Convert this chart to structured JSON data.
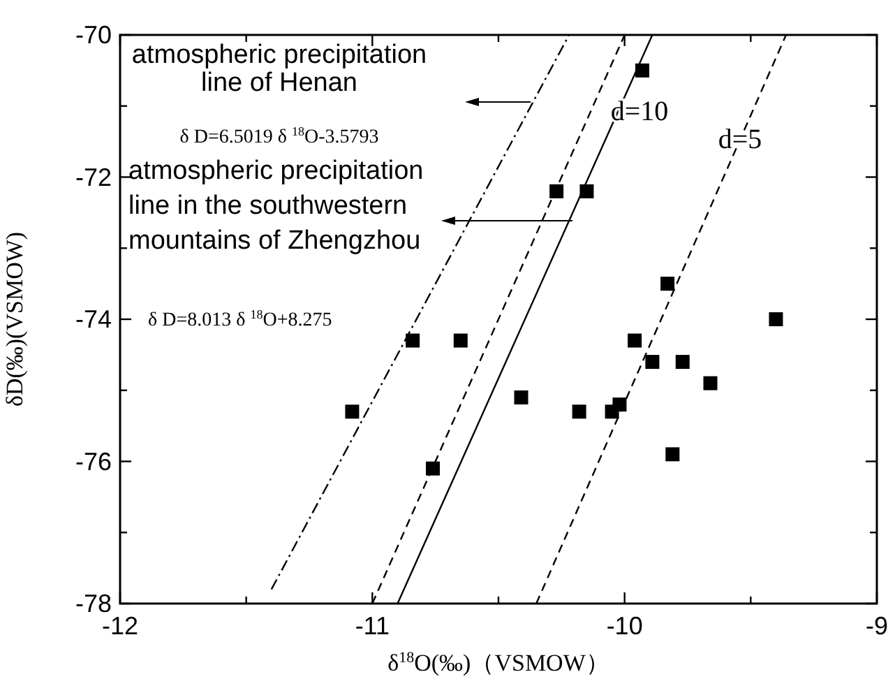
{
  "chart_data": {
    "type": "scatter",
    "xlabel": "δ$^{18}$O(‰)（VSMOW）",
    "ylabel": "δD(‰)(VSMOW)",
    "xlim": [
      -12,
      -9
    ],
    "xticks": [
      -12,
      {
        "value": -11.5,
        "label": null
      },
      -11,
      {
        "value": -10.5,
        "label": null
      },
      -10,
      {
        "value": -9.5,
        "label": null
      },
      -9
    ],
    "ylim": [
      -78,
      -70
    ],
    "yticks": [
      -78,
      {
        "value": -77,
        "label": null
      },
      -76,
      {
        "value": -75,
        "label": null
      },
      -74,
      {
        "value": -73,
        "label": null
      },
      -72,
      {
        "value": -71,
        "label": null
      },
      -70
    ],
    "marker": "square",
    "grid": false,
    "series": [
      {
        "color": "#000000",
        "x": [
          -9.93,
          -10.27,
          -10.15,
          -9.83,
          -10.84,
          -10.65,
          -11.08,
          -10.76,
          -9.4,
          -9.96,
          -9.89,
          -9.77,
          -9.66,
          -10.41,
          -10.18,
          -10.05,
          -10.02,
          -9.81
        ],
        "values": [
          -70.5,
          -72.2,
          -72.2,
          -73.5,
          -74.3,
          -74.3,
          -75.3,
          -76.1,
          -74.0,
          -74.3,
          -74.6,
          -74.6,
          -74.9,
          -75.1,
          -75.3,
          -75.3,
          -75.2,
          -75.9
        ]
      },
      {
        "type": "line",
        "color": "#000000",
        "line_style": "dashdot",
        "marker": "none",
        "x": [
          -11.4,
          -10.22
        ],
        "values": [
          -77.8,
          -70
        ]
      },
      {
        "type": "line",
        "color": "#000000",
        "line_style": "dashed",
        "marker": "none",
        "x": [
          -11.0,
          -10.0
        ],
        "values": [
          -78,
          -70
        ]
      },
      {
        "type": "line",
        "color": "#000000",
        "line_style": "solid",
        "marker": "none",
        "x": [
          -10.9,
          -9.89
        ],
        "values": [
          -78,
          -70
        ]
      },
      {
        "type": "line",
        "color": "#000000",
        "line_style": "dashed",
        "marker": "none",
        "x": [
          -10.35,
          -9.36
        ],
        "values": [
          -78,
          -70
        ]
      }
    ],
    "annotations": [
      "atmospheric precipitation line of Henan",
      "δ D=6.5019 δ $^{18}$O-3.5793",
      "atmospheric precipitation line in the southwestern mountains of Zhengzhou",
      "δ D=8.013 δ $^{18}$O+8.275",
      "d=10",
      "d=5"
    ]
  }
}
